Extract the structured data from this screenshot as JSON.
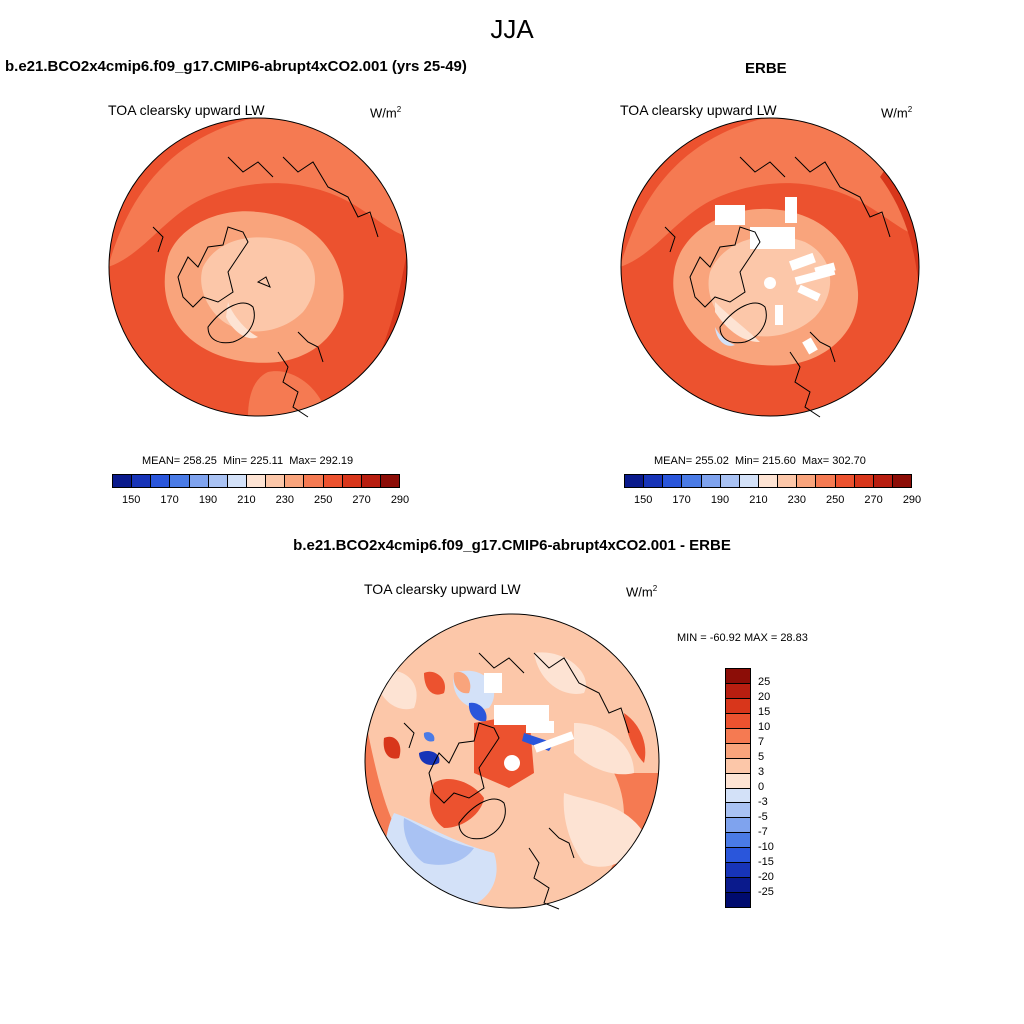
{
  "figure": {
    "season": "JJA",
    "model_case": "b.e21.BCO2x4cmip6.f09_g17.CMIP6-abrupt4xCO2.001 (yrs 25-49)",
    "obs_case": "ERBE",
    "diff_case": "b.e21.BCO2x4cmip6.f09_g17.CMIP6-abrupt4xCO2.001 - ERBE",
    "variable": "TOA clearsky upward LW",
    "units_base": "W/m",
    "units_exp": "2"
  },
  "panels": {
    "model": {
      "mean_label": "MEAN= 258.25",
      "min_label": "Min= 225.11",
      "max_label": "Max= 292.19",
      "mean": 258.25,
      "min": 225.11,
      "max": 292.19
    },
    "obs": {
      "mean_label": "MEAN= 255.02",
      "min_label": "Min= 215.60",
      "max_label": "Max= 302.70",
      "mean": 255.02,
      "min": 215.6,
      "max": 302.7
    },
    "diff": {
      "minmax_label": "MIN = -60.92 MAX =  28.83",
      "min": -60.92,
      "max": 28.83
    }
  },
  "colorbar_abs": {
    "tick_labels": [
      "150",
      "170",
      "190",
      "210",
      "230",
      "250",
      "270",
      "290"
    ],
    "colors": [
      "#0a1a8c",
      "#1734b8",
      "#2a56db",
      "#4a7be6",
      "#7fa3ee",
      "#a9c2f3",
      "#d3e1f8",
      "#fde3d3",
      "#fcc7a9",
      "#f9a47c",
      "#f57a52",
      "#ec522f",
      "#d8361b",
      "#b81e10",
      "#8c0d07"
    ]
  },
  "colorbar_diff": {
    "tick_labels": [
      "25",
      "20",
      "15",
      "10",
      "7",
      "5",
      "3",
      "0",
      "-3",
      "-5",
      "-7",
      "-10",
      "-15",
      "-20",
      "-25"
    ],
    "colors": [
      "#8c0d07",
      "#b81e10",
      "#d8361b",
      "#ec522f",
      "#f57a52",
      "#f9a47c",
      "#fcc7a9",
      "#fde3d3",
      "#d3e1f8",
      "#a9c2f3",
      "#7fa3ee",
      "#4a7be6",
      "#2a56db",
      "#1734b8",
      "#0a1a8c",
      "#000b6e"
    ]
  }
}
